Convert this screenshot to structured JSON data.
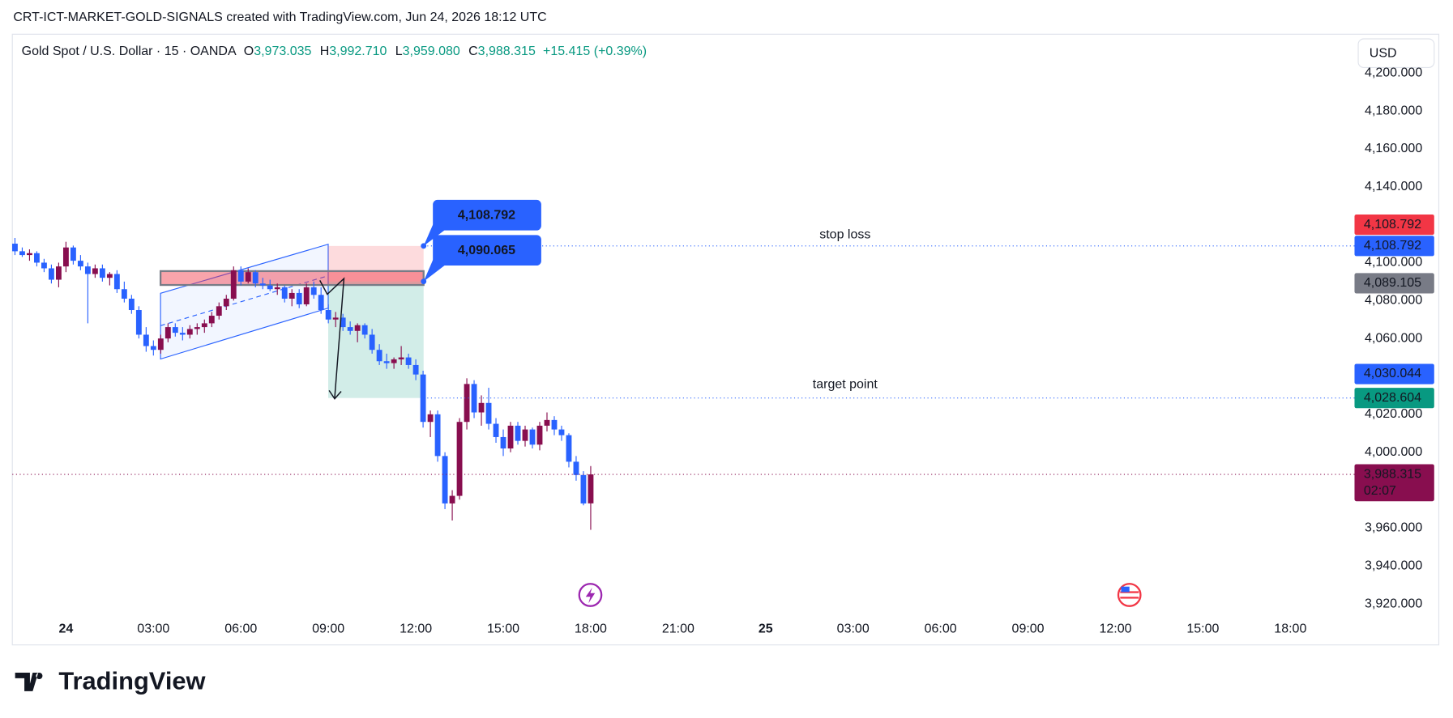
{
  "header": "CRT-ICT-MARKET-GOLD-SIGNALS created with TradingView.com, Jun 24, 2026 18:12 UTC",
  "footer": "TradingView",
  "chart_data": {
    "type": "candlestick",
    "symbol": "Gold Spot / U.S. Dollar · 15 · OANDA",
    "ohlc_legend": [
      {
        "key": "O",
        "label": "3,973.035"
      },
      {
        "key": "H",
        "label": "3,992.710"
      },
      {
        "key": "L",
        "label": "3,959.080"
      },
      {
        "key": "C",
        "label": "3,988.315"
      }
    ],
    "change": "+15.415 (+0.39%)",
    "currency": "USD",
    "x": [
      -1.75,
      -1.5,
      -1.25,
      -1,
      -0.75,
      -0.5,
      -0.25,
      0,
      0.25,
      0.5,
      0.75,
      1,
      1.25,
      1.5,
      1.75,
      2,
      2.25,
      2.5,
      2.75,
      3,
      3.25,
      3.5,
      3.75,
      4,
      4.25,
      4.5,
      4.75,
      5,
      5.25,
      5.5,
      5.75,
      6,
      6.25,
      6.5,
      6.75,
      7,
      7.25,
      7.5,
      7.75,
      8,
      8.25,
      8.5,
      8.75,
      9,
      9.25,
      9.5,
      9.75,
      10,
      10.25,
      10.5,
      10.75,
      11,
      11.25,
      11.5,
      11.75,
      12,
      12.25,
      12.5,
      12.75,
      13,
      13.25,
      13.5,
      13.75,
      14,
      14.25,
      14.5,
      14.75,
      15,
      15.25,
      15.5,
      15.75,
      16,
      16.25,
      16.5,
      16.75,
      17,
      17.25,
      17.5,
      17.75,
      18
    ],
    "open": [
      4110,
      4106,
      4104,
      4105,
      4100,
      4097,
      4091,
      4098,
      4108,
      4101,
      4098,
      4094,
      4097,
      4092,
      4094,
      4086,
      4081,
      4075,
      4062,
      4056,
      4054,
      4060,
      4066,
      4063,
      4062,
      4065,
      4066,
      4068,
      4072,
      4077,
      4081,
      4096,
      4090,
      4095,
      4089,
      4088,
      4086,
      4087,
      4081,
      4084,
      4078,
      4087,
      4083,
      4075,
      4070,
      4071,
      4066,
      4064,
      4067,
      4062,
      4054,
      4048,
      4047,
      4049,
      4050,
      4046,
      4041,
      4016,
      4020,
      3998,
      3973,
      3977,
      4016,
      4036,
      4021,
      4026,
      4015,
      4008,
      4002,
      4014,
      4006,
      4012,
      4004,
      4014,
      4017,
      4012,
      4009,
      3995,
      3988,
      3973.035
    ],
    "high": [
      4113,
      4108,
      4107,
      4106,
      4102,
      4099,
      4100,
      4111,
      4109,
      4104,
      4100,
      4099,
      4099,
      4095,
      4096,
      4090,
      4083,
      4077,
      4066,
      4059,
      4062,
      4068,
      4068,
      4066,
      4067,
      4068,
      4070,
      4074,
      4079,
      4083,
      4098,
      4098,
      4097,
      4096,
      4092,
      4091,
      4089,
      4088,
      4086,
      4086,
      4089,
      4090,
      4087,
      4078,
      4074,
      4073,
      4069,
      4068,
      4068,
      4065,
      4057,
      4052,
      4050,
      4056,
      4052,
      4049,
      4043,
      4022,
      4022,
      4000,
      3980,
      4018,
      4039,
      4038,
      4030,
      4034,
      4018,
      4012,
      4016,
      4016,
      4014,
      4013,
      4016,
      4021,
      4019,
      4014,
      4010,
      3998,
      3990,
      3992.71
    ],
    "low": [
      4104,
      4103,
      4101,
      4098,
      4095,
      4089,
      4087,
      4095,
      4099,
      4096,
      4068,
      4092,
      4090,
      4088,
      4084,
      4079,
      4073,
      4060,
      4053,
      4051,
      4052,
      4058,
      4061,
      4059,
      4060,
      4062,
      4063,
      4066,
      4070,
      4075,
      4080,
      4088,
      4089,
      4087,
      4086,
      4085,
      4083,
      4079,
      4077,
      4076,
      4077,
      4081,
      4073,
      4068,
      4066,
      4064,
      4062,
      4058,
      4060,
      4052,
      4046,
      4044,
      4044,
      4046,
      4044,
      4038,
      4013,
      4008,
      3995,
      3970,
      3964,
      3975,
      4012,
      4018,
      4014,
      4012,
      4005,
      3998,
      4000,
      4004,
      4003,
      4002,
      4001,
      4011,
      4009,
      4006,
      3992,
      3985,
      3972,
      3959.08
    ],
    "close": [
      4106,
      4104,
      4105,
      4100,
      4097,
      4091,
      4098,
      4108,
      4101,
      4098,
      4094,
      4097,
      4092,
      4094,
      4086,
      4081,
      4075,
      4062,
      4056,
      4054,
      4060,
      4066,
      4063,
      4062,
      4065,
      4066,
      4068,
      4072,
      4077,
      4081,
      4096,
      4090,
      4095,
      4089,
      4088,
      4086,
      4087,
      4081,
      4084,
      4078,
      4087,
      4083,
      4075,
      4070,
      4071,
      4066,
      4064,
      4067,
      4062,
      4054,
      4048,
      4047,
      4049,
      4050,
      4046,
      4041,
      4016,
      4020,
      3998,
      3973,
      3977,
      4016,
      4036,
      4021,
      4026,
      4015,
      4008,
      4002,
      4014,
      4006,
      4012,
      4004,
      4014,
      4017,
      4012,
      4009,
      3995,
      3988,
      3973,
      3988.315
    ],
    "up_color": "#880e4f",
    "down_color": "#2962ff",
    "xlim": [
      -1.84,
      44.2
    ],
    "xticks": [
      {
        "value": 0,
        "label": "24"
      },
      {
        "value": 3,
        "label": "03:00"
      },
      {
        "value": 6,
        "label": "06:00"
      },
      {
        "value": 9,
        "label": "09:00"
      },
      {
        "value": 12,
        "label": "12:00"
      },
      {
        "value": 15,
        "label": "15:00"
      },
      {
        "value": 18,
        "label": "18:00"
      },
      {
        "value": 21,
        "label": "21:00"
      },
      {
        "value": 24,
        "label": "25"
      },
      {
        "value": 27,
        "label": "03:00"
      },
      {
        "value": 30,
        "label": "06:00"
      },
      {
        "value": 33,
        "label": "09:00"
      },
      {
        "value": 36,
        "label": "12:00"
      },
      {
        "value": 39,
        "label": "15:00"
      },
      {
        "value": 42,
        "label": "18:00"
      }
    ],
    "ylim": [
      3914,
      4219
    ],
    "yticks": [
      {
        "value": 3920,
        "label": "3,920.000"
      },
      {
        "value": 3940,
        "label": "3,940.000"
      },
      {
        "value": 3960,
        "label": "3,960.000"
      },
      {
        "value": 3980,
        "label": "3,980.000"
      },
      {
        "value": 4000,
        "label": "4,000.000"
      },
      {
        "value": 4020,
        "label": "4,020.000"
      },
      {
        "value": 4040,
        "label": "4,040.000"
      },
      {
        "value": 4060,
        "label": "4,060.000"
      },
      {
        "value": 4080,
        "label": "4,080.000"
      },
      {
        "value": 4100,
        "label": "4,100.000"
      },
      {
        "value": 4120,
        "label": "4,120.000"
      },
      {
        "value": 4140,
        "label": "4,140.000"
      },
      {
        "value": 4160,
        "label": "4,160.000"
      },
      {
        "value": 4180,
        "label": "4,180.000"
      },
      {
        "value": 4200,
        "label": "4,200.000"
      }
    ],
    "last_price_time": "02:07",
    "price_labels": [
      {
        "value": 4108.792,
        "label": "4,108.792",
        "color": "#f23645"
      },
      {
        "value": 4108.792,
        "label": "4,108.792",
        "color": "#2962ff"
      },
      {
        "value": 4089.105,
        "label": "4,089.105",
        "color": "#787b86"
      },
      {
        "value": 4030.044,
        "label": "4,030.044",
        "color": "#2962ff"
      },
      {
        "value": 4028.604,
        "label": "4,028.604",
        "color": "#089981"
      },
      {
        "value": 3988.315,
        "label": "3,988.315",
        "color": "#880e4f"
      }
    ],
    "levels": [
      {
        "label": "stop loss",
        "value": 4108.792
      },
      {
        "label": "target point",
        "value": 4028.604
      }
    ],
    "callouts": [
      {
        "value": 4108.792,
        "label": "4,108.792"
      },
      {
        "value": 4090.065,
        "label": "4,090.065"
      }
    ]
  }
}
